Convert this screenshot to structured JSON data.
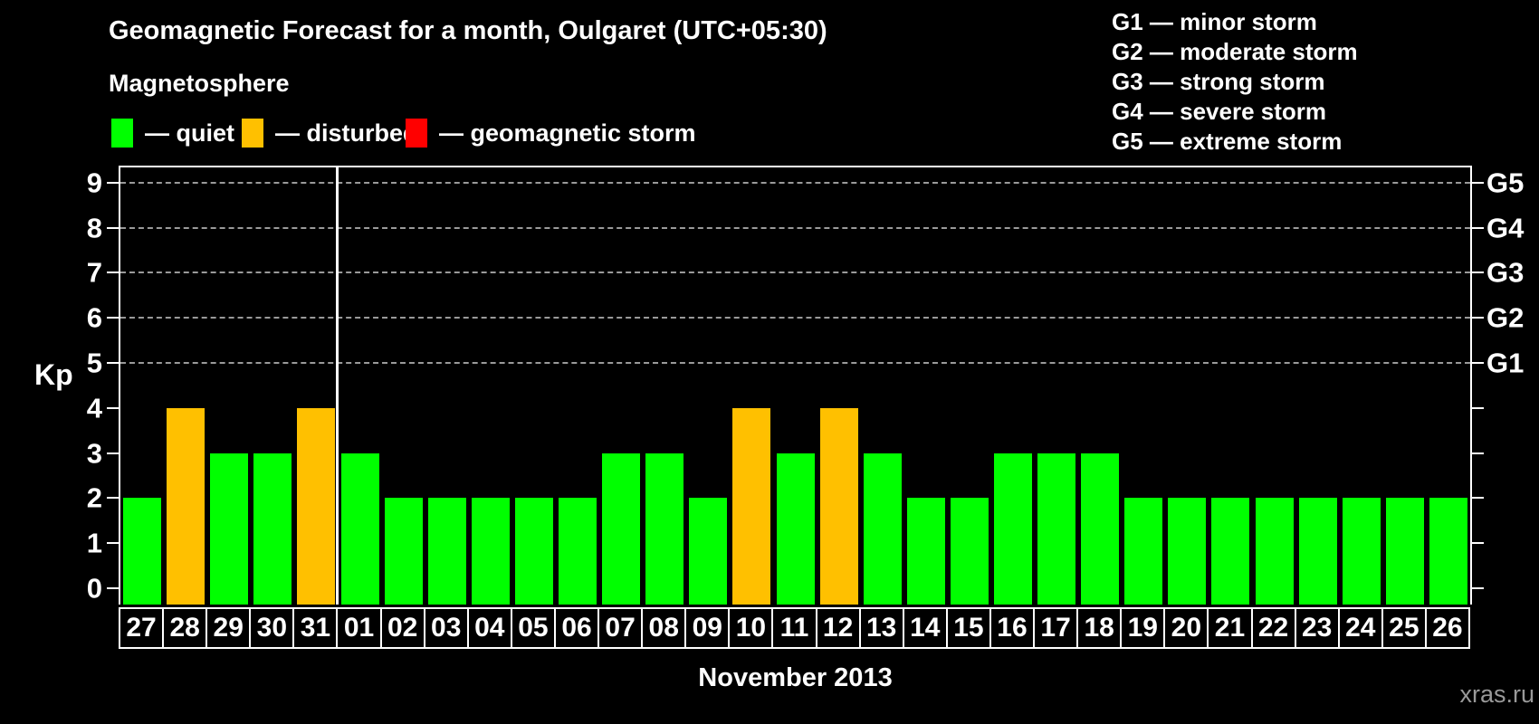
{
  "header": {
    "title": "Geomagnetic Forecast for a month, Oulgaret (UTC+05:30)",
    "subtitle": "Magnetosphere"
  },
  "legend": {
    "quiet_label": "— quiet",
    "disturbed_label": "— disturbed",
    "storm_label": "— geomagnetic storm"
  },
  "g_legend": {
    "lines": [
      "G1 — minor storm",
      "G2 — moderate storm",
      "G3 — strong storm",
      "G4 — severe storm",
      "G5 — extreme storm"
    ]
  },
  "colors": {
    "quiet": "#00ff00",
    "disturbed": "#ffc000",
    "storm": "#ff0000",
    "grid_line": "#9a9a9a",
    "axis_line": "#ffffff",
    "brand_text": "#999999"
  },
  "axes": {
    "y_label": "Kp",
    "y_ticks": [
      0,
      1,
      2,
      3,
      4,
      5,
      6,
      7,
      8,
      9
    ],
    "grid_levels": [
      5,
      6,
      7,
      8,
      9
    ],
    "right_labels": [
      {
        "label": "G1",
        "kp": 5
      },
      {
        "label": "G2",
        "kp": 6
      },
      {
        "label": "G3",
        "kp": 7
      },
      {
        "label": "G4",
        "kp": 8
      },
      {
        "label": "G5",
        "kp": 9
      }
    ]
  },
  "chart_data": {
    "type": "bar",
    "title": "Geomagnetic Forecast for a month, Oulgaret (UTC+05:30)",
    "xlabel": "November 2013",
    "ylabel": "Kp",
    "ylim": [
      0,
      9.4
    ],
    "grid": "dashed-horizontal",
    "legend_position": "top-left",
    "categories": [
      "27",
      "28",
      "29",
      "30",
      "31",
      "01",
      "02",
      "03",
      "04",
      "05",
      "06",
      "07",
      "08",
      "09",
      "10",
      "11",
      "12",
      "13",
      "14",
      "15",
      "16",
      "17",
      "18",
      "19",
      "20",
      "21",
      "22",
      "23",
      "24",
      "25",
      "26"
    ],
    "values": [
      2,
      4,
      3,
      3,
      4,
      3,
      2,
      2,
      2,
      2,
      2,
      3,
      3,
      2,
      4,
      3,
      4,
      3,
      2,
      2,
      3,
      3,
      3,
      2,
      2,
      2,
      2,
      2,
      2,
      2,
      2
    ],
    "statuses": [
      "quiet",
      "disturbed",
      "quiet",
      "quiet",
      "disturbed",
      "quiet",
      "quiet",
      "quiet",
      "quiet",
      "quiet",
      "quiet",
      "quiet",
      "quiet",
      "quiet",
      "disturbed",
      "quiet",
      "disturbed",
      "quiet",
      "quiet",
      "quiet",
      "quiet",
      "quiet",
      "quiet",
      "quiet",
      "quiet",
      "quiet",
      "quiet",
      "quiet",
      "quiet",
      "quiet",
      "quiet"
    ],
    "month_boundary_after_index": 4
  },
  "footer": {
    "month_label": "November 2013",
    "brand": "xras.ru"
  }
}
